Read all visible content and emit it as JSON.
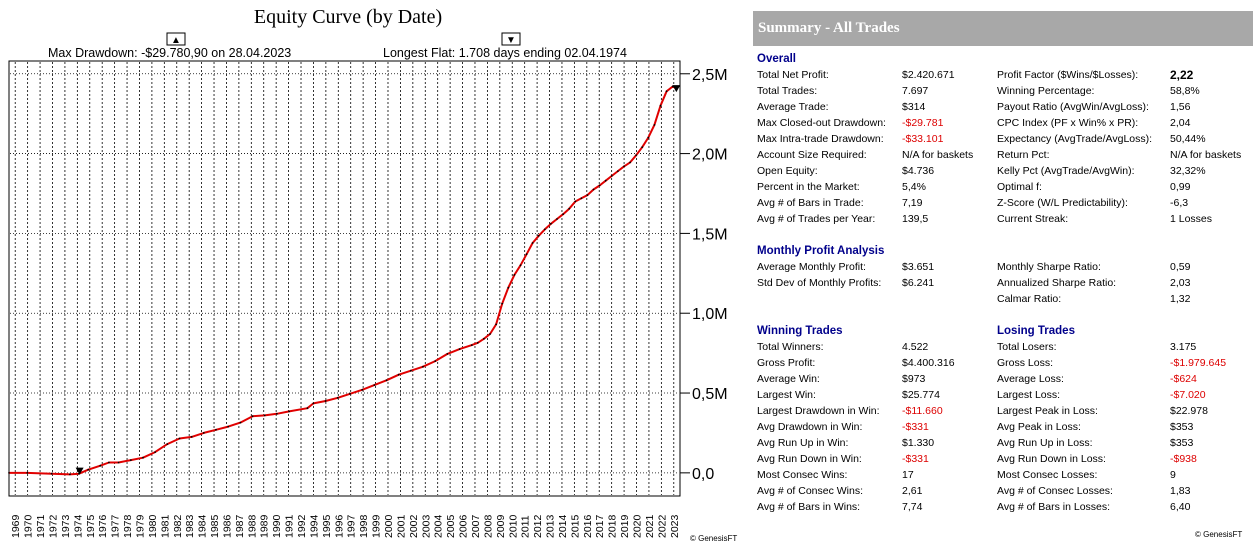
{
  "chart_data": {
    "type": "line",
    "title": "Equity Curve (by Date)",
    "max_drawdown_text": "Max Drawdown: -$29.780,90 on 28.04.2023",
    "longest_flat_text": "Longest Flat: 1.708 days ending 02.04.1974",
    "max_drawdown_marker": "▲",
    "longest_flat_marker": "▼",
    "x_tick_labels": [
      "1969",
      "1970",
      "1971",
      "1972",
      "1973",
      "1974",
      "1975",
      "1976",
      "1977",
      "1978",
      "1979",
      "1980",
      "1981",
      "1982",
      "1983",
      "1984",
      "1985",
      "1986",
      "1987",
      "1988",
      "1989",
      "1990",
      "1991",
      "1992",
      "1994",
      "1995",
      "1996",
      "1997",
      "1998",
      "1999",
      "2000",
      "2001",
      "2002",
      "2003",
      "2004",
      "2005",
      "2006",
      "2007",
      "2008",
      "2009",
      "2010",
      "2011",
      "2012",
      "2013",
      "2014",
      "2015",
      "2016",
      "2017",
      "2018",
      "2019",
      "2020",
      "2021",
      "2022",
      "2023"
    ],
    "y_ticks": [
      0,
      500000,
      1000000,
      1500000,
      2000000,
      2500000
    ],
    "y_tick_labels": [
      "0,0",
      "0,5M",
      "1,0M",
      "1,5M",
      "2,0M",
      "2,5M"
    ],
    "ylim": [
      -145000,
      2580000
    ],
    "xlim": [
      1968.5,
      2023.6
    ],
    "series": [
      {
        "name": "Equity",
        "color": "#e00000",
        "x": [
          1968.5,
          1970,
          1972,
          1973.5,
          1974.25,
          1975,
          1976,
          1976.7,
          1977.5,
          1978.5,
          1979.5,
          1980.5,
          1981.5,
          1982.5,
          1983.5,
          1984.5,
          1985.5,
          1986.5,
          1987.5,
          1988.5,
          1989.5,
          1990.5,
          1991.5,
          1993.0,
          1993.5,
          1994.5,
          1995.5,
          1996.5,
          1997.5,
          1998.5,
          1999.5,
          2000.5,
          2001.5,
          2002.5,
          2003.5,
          2004.5,
          2005.5,
          2006.5,
          2007.0,
          2007.5,
          2008.0,
          2008.5,
          2009.0,
          2009.5,
          2010.0,
          2010.5,
          2011.0,
          2011.5,
          2012.0,
          2012.5,
          2013.0,
          2013.5,
          2014.0,
          2014.5,
          2015.0,
          2015.5,
          2016.0,
          2016.5,
          2017.0,
          2017.5,
          2018.0,
          2018.5,
          2019.0,
          2019.5,
          2020.0,
          2020.5,
          2021.0,
          2021.5,
          2022.0,
          2022.5,
          2023.0,
          2023.3
        ],
        "y": [
          0,
          0,
          -5000,
          -10000,
          -5000,
          20000,
          45000,
          65000,
          65000,
          80000,
          95000,
          130000,
          180000,
          215000,
          225000,
          250000,
          270000,
          290000,
          315000,
          355000,
          360000,
          370000,
          385000,
          405000,
          435000,
          450000,
          470000,
          495000,
          520000,
          550000,
          580000,
          615000,
          640000,
          665000,
          700000,
          745000,
          775000,
          800000,
          815000,
          840000,
          870000,
          930000,
          1060000,
          1160000,
          1240000,
          1300000,
          1370000,
          1440000,
          1485000,
          1525000,
          1560000,
          1590000,
          1620000,
          1655000,
          1700000,
          1720000,
          1740000,
          1775000,
          1800000,
          1830000,
          1860000,
          1890000,
          1920000,
          1945000,
          1990000,
          2040000,
          2100000,
          2180000,
          2300000,
          2390000,
          2420000,
          2410000
        ]
      }
    ],
    "watermark": "© GenesisFT"
  },
  "summary": {
    "header": "Summary - All Trades",
    "overall_title": "Overall",
    "overall_left": [
      {
        "label": "Total Net Profit:",
        "value": "$2.420.671",
        "neg": false
      },
      {
        "label": "Total Trades:",
        "value": "7.697",
        "neg": false
      },
      {
        "label": "Average Trade:",
        "value": "$314",
        "neg": false
      },
      {
        "label": "Max Closed-out Drawdown:",
        "value": "-$29.781",
        "neg": true
      },
      {
        "label": "Max Intra-trade Drawdown:",
        "value": "-$33.101",
        "neg": true
      },
      {
        "label": "Account Size Required:",
        "value": "N/A for baskets",
        "neg": false
      },
      {
        "label": "Open Equity:",
        "value": "$4.736",
        "neg": false
      },
      {
        "label": "Percent in the Market:",
        "value": "5,4%",
        "neg": false
      },
      {
        "label": "Avg # of Bars in Trade:",
        "value": "7,19",
        "neg": false
      },
      {
        "label": "Avg # of Trades per Year:",
        "value": "139,5",
        "neg": false
      }
    ],
    "overall_right": [
      {
        "label": "Profit Factor ($Wins/$Losses):",
        "value": "2,22",
        "neg": false,
        "bold": true
      },
      {
        "label": "Winning Percentage:",
        "value": "58,8%",
        "neg": false
      },
      {
        "label": "Payout Ratio (AvgWin/AvgLoss):",
        "value": "1,56",
        "neg": false
      },
      {
        "label": "CPC Index (PF x Win% x PR):",
        "value": "2,04",
        "neg": false
      },
      {
        "label": "Expectancy (AvgTrade/AvgLoss):",
        "value": "50,44%",
        "neg": false
      },
      {
        "label": "Return Pct:",
        "value": "N/A for baskets",
        "neg": false
      },
      {
        "label": "Kelly Pct (AvgTrade/AvgWin):",
        "value": "32,32%",
        "neg": false
      },
      {
        "label": "Optimal f:",
        "value": "0,99",
        "neg": false
      },
      {
        "label": "Z-Score (W/L Predictability):",
        "value": "-6,3",
        "neg": false
      },
      {
        "label": "Current Streak:",
        "value": "1 Losses",
        "neg": false
      }
    ],
    "monthly_title": "Monthly Profit Analysis",
    "monthly_left": [
      {
        "label": "Average Monthly Profit:",
        "value": "$3.651",
        "neg": false
      },
      {
        "label": "Std Dev of Monthly Profits:",
        "value": "$6.241",
        "neg": false
      }
    ],
    "monthly_right": [
      {
        "label": "Monthly Sharpe Ratio:",
        "value": "0,59",
        "neg": false
      },
      {
        "label": "Annualized Sharpe Ratio:",
        "value": "2,03",
        "neg": false
      },
      {
        "label": "Calmar Ratio:",
        "value": "1,32",
        "neg": false
      }
    ],
    "winning_title": "Winning Trades",
    "winning": [
      {
        "label": "Total Winners:",
        "value": "4.522",
        "neg": false
      },
      {
        "label": "Gross Profit:",
        "value": "$4.400.316",
        "neg": false
      },
      {
        "label": "Average Win:",
        "value": "$973",
        "neg": false
      },
      {
        "label": "Largest Win:",
        "value": "$25.774",
        "neg": false
      },
      {
        "label": "Largest Drawdown in Win:",
        "value": "-$11.660",
        "neg": true
      },
      {
        "label": "Avg Drawdown in Win:",
        "value": "-$331",
        "neg": true
      },
      {
        "label": "Avg Run Up in Win:",
        "value": "$1.330",
        "neg": false
      },
      {
        "label": "Avg Run Down in Win:",
        "value": "-$331",
        "neg": true
      },
      {
        "label": "Most Consec Wins:",
        "value": "17",
        "neg": false
      },
      {
        "label": "Avg # of Consec Wins:",
        "value": "2,61",
        "neg": false
      },
      {
        "label": "Avg # of Bars in Wins:",
        "value": "7,74",
        "neg": false
      }
    ],
    "losing_title": "Losing Trades",
    "losing": [
      {
        "label": "Total Losers:",
        "value": "3.175",
        "neg": false
      },
      {
        "label": "Gross Loss:",
        "value": "-$1.979.645",
        "neg": true
      },
      {
        "label": "Average Loss:",
        "value": "-$624",
        "neg": true
      },
      {
        "label": "Largest Loss:",
        "value": "-$7.020",
        "neg": true
      },
      {
        "label": "Largest Peak in Loss:",
        "value": "$22.978",
        "neg": false
      },
      {
        "label": "Avg Peak in Loss:",
        "value": "$353",
        "neg": false
      },
      {
        "label": "Avg Run Up in Loss:",
        "value": "$353",
        "neg": false
      },
      {
        "label": "Avg Run Down in Loss:",
        "value": "-$938",
        "neg": true
      },
      {
        "label": "Most Consec Losses:",
        "value": "9",
        "neg": false
      },
      {
        "label": "Avg # of Consec Losses:",
        "value": "1,83",
        "neg": false
      },
      {
        "label": "Avg # of Bars in Losses:",
        "value": "6,40",
        "neg": false
      }
    ],
    "watermark": "© GenesisFT"
  }
}
